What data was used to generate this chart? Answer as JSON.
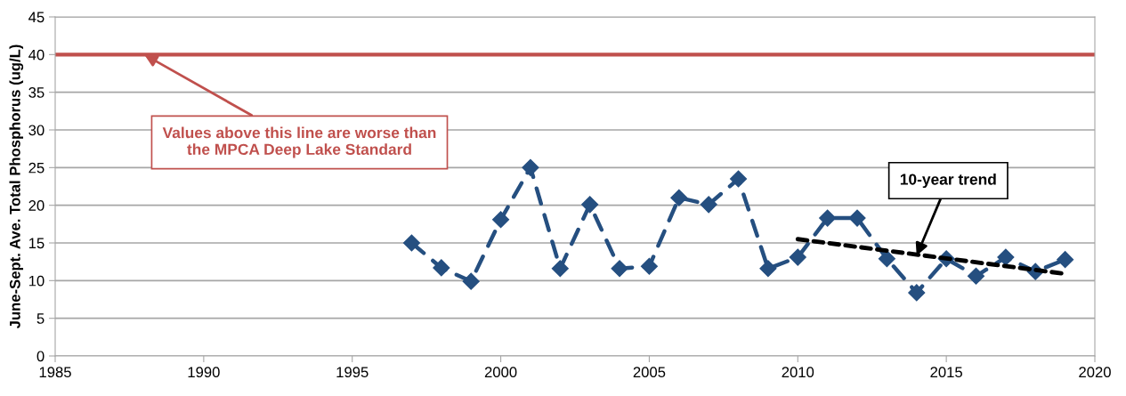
{
  "chart_data": {
    "type": "line",
    "ylabel": "June-Sept. Ave. Total Phosphorus (ug/L)",
    "xlim": [
      1985,
      2020
    ],
    "xticks": [
      1985,
      1990,
      1995,
      2000,
      2005,
      2010,
      2015,
      2020
    ],
    "ylim": [
      0,
      45
    ],
    "yticks": [
      0,
      5,
      10,
      15,
      20,
      25,
      30,
      35,
      40,
      45
    ],
    "grid": "y",
    "legend": false,
    "series": [
      {
        "color": "#254f80",
        "marker": "diamond",
        "line_style": "dashed",
        "x": [
          1997,
          1998,
          1999,
          2000,
          2001,
          2002,
          2003,
          2004,
          2005,
          2006,
          2007,
          2008,
          2009,
          2010,
          2011,
          2012,
          2013,
          2014,
          2015,
          2016,
          2017,
          2018,
          2019
        ],
        "values": [
          15.0,
          11.7,
          9.9,
          18.1,
          25.0,
          11.6,
          20.1,
          11.6,
          11.9,
          21.0,
          20.1,
          23.5,
          11.6,
          13.1,
          18.3,
          18.3,
          12.9,
          8.4,
          12.9,
          10.6,
          13.1,
          11.2,
          12.8
        ]
      },
      {
        "color": "#000000",
        "marker": "none",
        "line_style": "dashed",
        "x": [
          2010,
          2019
        ],
        "values": [
          15.5,
          10.9
        ]
      }
    ],
    "ref_lines": [
      {
        "axis": "y",
        "value": 40,
        "color": "#c0504d",
        "line_style": "solid"
      }
    ],
    "annotations": [
      {
        "text": "Values above this line are worse than\nthe MPCA Deep Lake Standard",
        "x": 1988,
        "y": 40
      },
      {
        "text": "10-year trend",
        "x": 2014,
        "y": 13.3
      }
    ]
  }
}
